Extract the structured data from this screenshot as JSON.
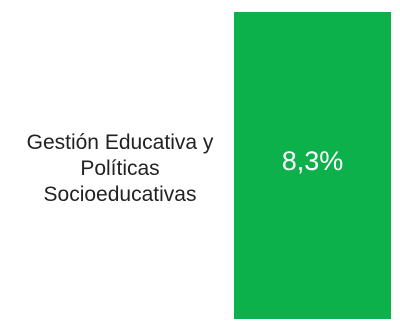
{
  "chart_data": {
    "type": "bar",
    "orientation": "horizontal",
    "categories": [
      "Gestión Educativa y Políticas Socioeducativas"
    ],
    "values": [
      8.3
    ],
    "value_labels": [
      "8,3%"
    ],
    "bar_color": "#0DB14B",
    "title": "",
    "xlabel": "",
    "ylabel": "",
    "grid": false
  }
}
